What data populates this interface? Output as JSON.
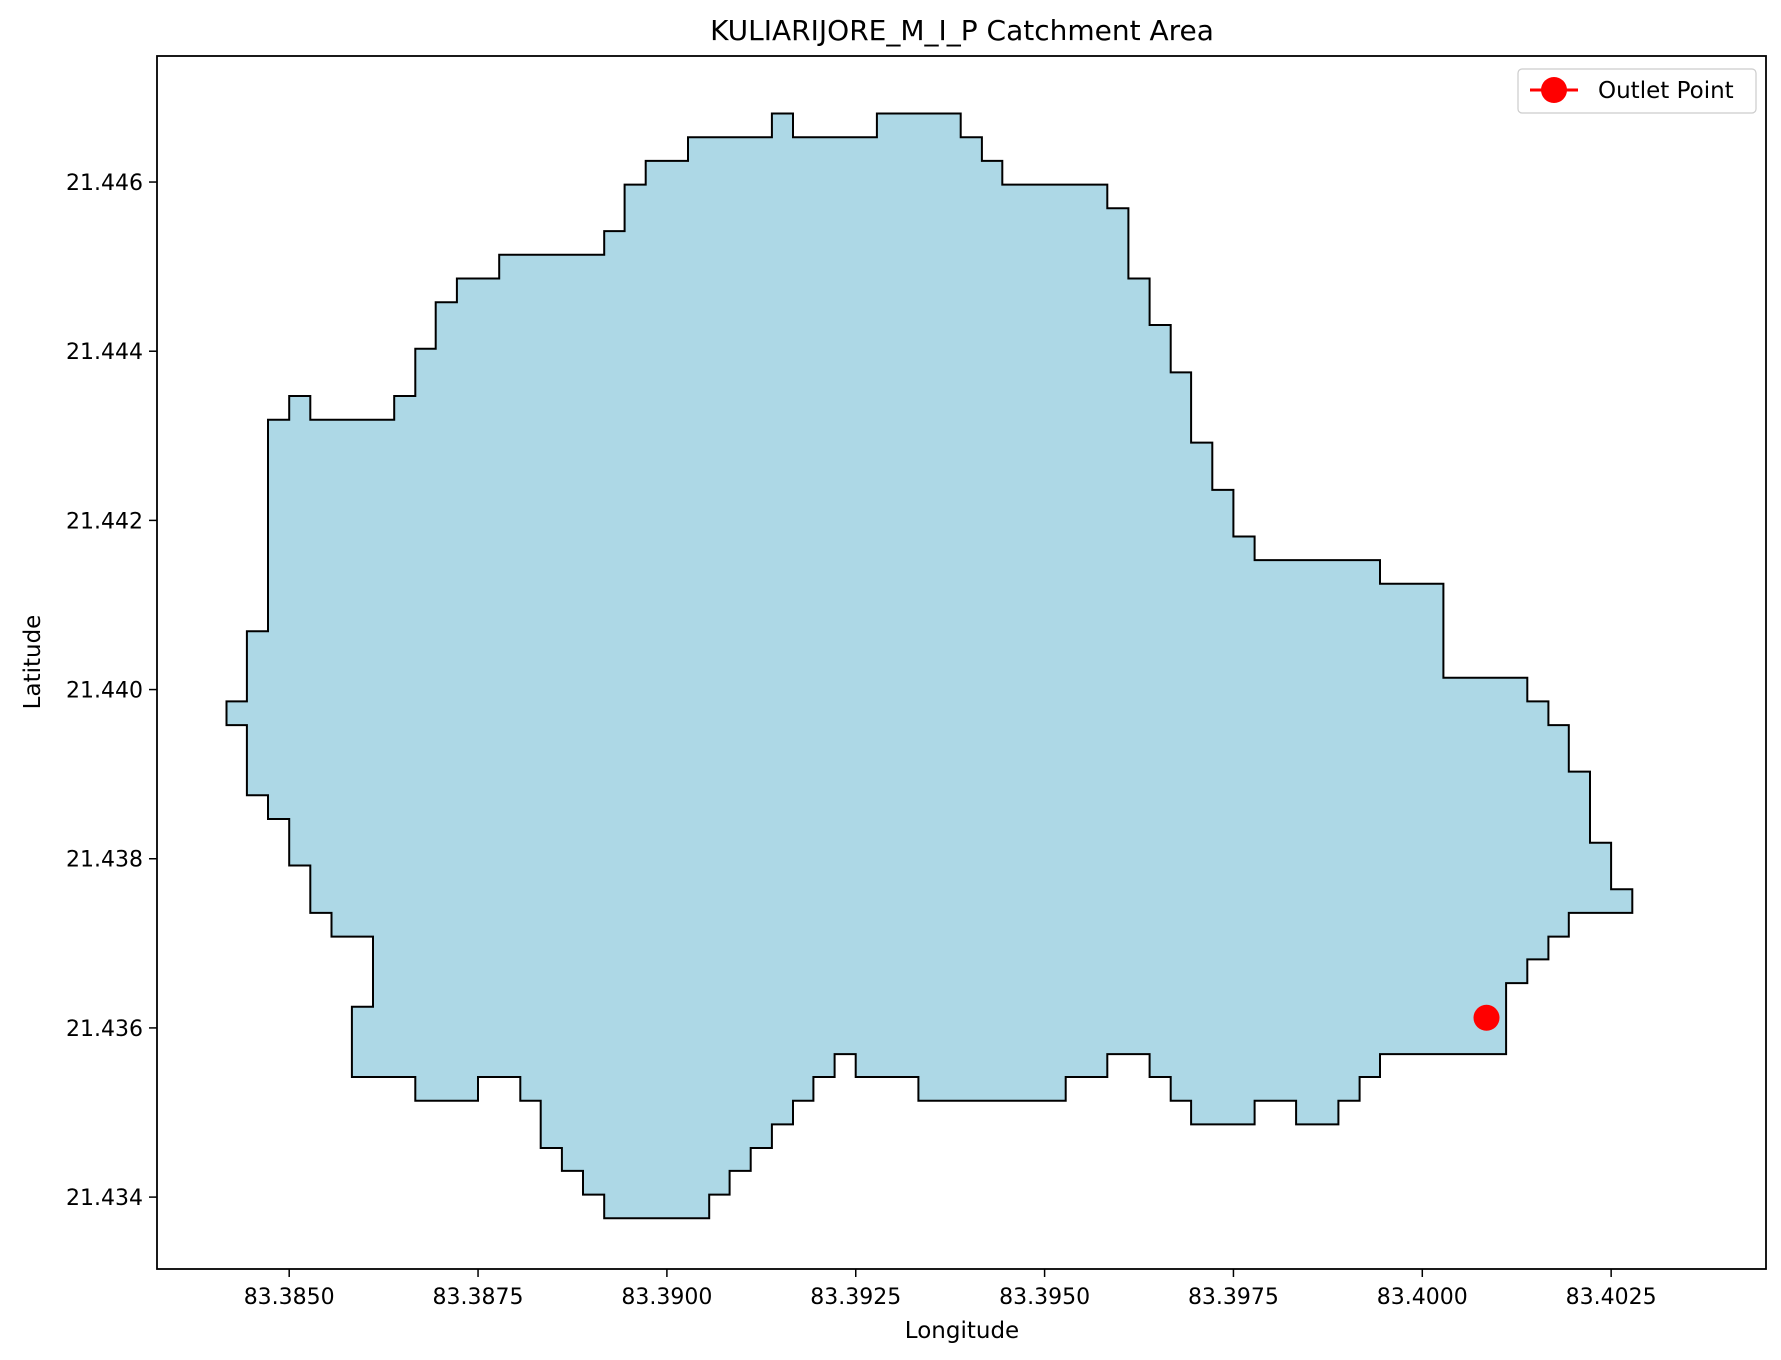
{
  "chart_data": {
    "type": "map",
    "title": "KULIARIJORE_M_I_P Catchment Area",
    "xlabel": "Longitude",
    "ylabel": "Latitude",
    "xlim": [
      83.38325,
      83.40455
    ],
    "ylim": [
      21.43315,
      21.44749
    ],
    "xticks": [
      83.385,
      83.3875,
      83.39,
      83.3925,
      83.395,
      83.3975,
      83.4,
      83.4025
    ],
    "xtick_labels": [
      "83.3850",
      "83.3875",
      "83.3900",
      "83.3925",
      "83.3950",
      "83.3975",
      "83.4000",
      "83.4025"
    ],
    "yticks": [
      21.434,
      21.436,
      21.438,
      21.44,
      21.442,
      21.444,
      21.446
    ],
    "ytick_labels": [
      "21.434",
      "21.436",
      "21.438",
      "21.440",
      "21.442",
      "21.444",
      "21.446"
    ],
    "grid": false,
    "legend": {
      "position": "top-right",
      "entries": [
        "Outlet Point"
      ]
    },
    "catchment": {
      "fill_color": "#add8e6",
      "edge_color": "#000000",
      "boundary_lon_lat": [
        [
          83.38417,
          21.43986
        ],
        [
          83.38444,
          21.43986
        ],
        [
          83.38444,
          21.44069
        ],
        [
          83.38472,
          21.44069
        ],
        [
          83.38472,
          21.44319
        ],
        [
          83.385,
          21.44319
        ],
        [
          83.385,
          21.44347
        ],
        [
          83.38528,
          21.44347
        ],
        [
          83.38528,
          21.44319
        ],
        [
          83.38639,
          21.44319
        ],
        [
          83.38639,
          21.44347
        ],
        [
          83.38667,
          21.44347
        ],
        [
          83.38667,
          21.44403
        ],
        [
          83.38694,
          21.44403
        ],
        [
          83.38694,
          21.44458
        ],
        [
          83.38722,
          21.44458
        ],
        [
          83.38722,
          21.44486
        ],
        [
          83.38778,
          21.44486
        ],
        [
          83.38778,
          21.44514
        ],
        [
          83.38917,
          21.44514
        ],
        [
          83.38917,
          21.44542
        ],
        [
          83.38944,
          21.44542
        ],
        [
          83.38944,
          21.44597
        ],
        [
          83.38972,
          21.44597
        ],
        [
          83.38972,
          21.44625
        ],
        [
          83.39028,
          21.44625
        ],
        [
          83.39028,
          21.44653
        ],
        [
          83.39139,
          21.44653
        ],
        [
          83.39139,
          21.44681
        ],
        [
          83.39167,
          21.44681
        ],
        [
          83.39167,
          21.44653
        ],
        [
          83.39278,
          21.44653
        ],
        [
          83.39278,
          21.44681
        ],
        [
          83.39389,
          21.44681
        ],
        [
          83.39389,
          21.44653
        ],
        [
          83.39417,
          21.44653
        ],
        [
          83.39417,
          21.44625
        ],
        [
          83.39444,
          21.44625
        ],
        [
          83.39444,
          21.44597
        ],
        [
          83.39583,
          21.44597
        ],
        [
          83.39583,
          21.44569
        ],
        [
          83.39611,
          21.44569
        ],
        [
          83.39611,
          21.44486
        ],
        [
          83.39639,
          21.44486
        ],
        [
          83.39639,
          21.44431
        ],
        [
          83.39667,
          21.44431
        ],
        [
          83.39667,
          21.44375
        ],
        [
          83.39694,
          21.44375
        ],
        [
          83.39694,
          21.44292
        ],
        [
          83.39722,
          21.44292
        ],
        [
          83.39722,
          21.44236
        ],
        [
          83.3975,
          21.44236
        ],
        [
          83.3975,
          21.44181
        ],
        [
          83.39778,
          21.44181
        ],
        [
          83.39778,
          21.44153
        ],
        [
          83.39944,
          21.44153
        ],
        [
          83.39944,
          21.44125
        ],
        [
          83.40028,
          21.44125
        ],
        [
          83.40028,
          21.44014
        ],
        [
          83.40139,
          21.44014
        ],
        [
          83.40139,
          21.43986
        ],
        [
          83.40167,
          21.43986
        ],
        [
          83.40167,
          21.43958
        ],
        [
          83.40194,
          21.43958
        ],
        [
          83.40194,
          21.43903
        ],
        [
          83.40222,
          21.43903
        ],
        [
          83.40222,
          21.43819
        ],
        [
          83.4025,
          21.43819
        ],
        [
          83.4025,
          21.43764
        ],
        [
          83.40278,
          21.43764
        ],
        [
          83.40278,
          21.43736
        ],
        [
          83.40194,
          21.43736
        ],
        [
          83.40194,
          21.43708
        ],
        [
          83.40167,
          21.43708
        ],
        [
          83.40167,
          21.43681
        ],
        [
          83.40139,
          21.43681
        ],
        [
          83.40139,
          21.43653
        ],
        [
          83.40111,
          21.43653
        ],
        [
          83.40111,
          21.43569
        ],
        [
          83.39944,
          21.43569
        ],
        [
          83.39944,
          21.43542
        ],
        [
          83.39917,
          21.43542
        ],
        [
          83.39917,
          21.43514
        ],
        [
          83.39889,
          21.43514
        ],
        [
          83.39889,
          21.43486
        ],
        [
          83.39833,
          21.43486
        ],
        [
          83.39833,
          21.43514
        ],
        [
          83.39778,
          21.43514
        ],
        [
          83.39778,
          21.43486
        ],
        [
          83.39694,
          21.43486
        ],
        [
          83.39694,
          21.43514
        ],
        [
          83.39667,
          21.43514
        ],
        [
          83.39667,
          21.43542
        ],
        [
          83.39639,
          21.43542
        ],
        [
          83.39639,
          21.43569
        ],
        [
          83.39583,
          21.43569
        ],
        [
          83.39583,
          21.43542
        ],
        [
          83.39528,
          21.43542
        ],
        [
          83.39528,
          21.43514
        ],
        [
          83.39333,
          21.43514
        ],
        [
          83.39333,
          21.43542
        ],
        [
          83.3925,
          21.43542
        ],
        [
          83.3925,
          21.43569
        ],
        [
          83.39222,
          21.43569
        ],
        [
          83.39222,
          21.43542
        ],
        [
          83.39194,
          21.43542
        ],
        [
          83.39194,
          21.43514
        ],
        [
          83.39167,
          21.43514
        ],
        [
          83.39167,
          21.43486
        ],
        [
          83.39139,
          21.43486
        ],
        [
          83.39139,
          21.43458
        ],
        [
          83.39111,
          21.43458
        ],
        [
          83.39111,
          21.43431
        ],
        [
          83.39083,
          21.43431
        ],
        [
          83.39083,
          21.43403
        ],
        [
          83.39056,
          21.43403
        ],
        [
          83.39056,
          21.43375
        ],
        [
          83.38917,
          21.43375
        ],
        [
          83.38917,
          21.43403
        ],
        [
          83.38889,
          21.43403
        ],
        [
          83.38889,
          21.43431
        ],
        [
          83.38861,
          21.43431
        ],
        [
          83.38861,
          21.43458
        ],
        [
          83.38833,
          21.43458
        ],
        [
          83.38833,
          21.43514
        ],
        [
          83.38806,
          21.43514
        ],
        [
          83.38806,
          21.43542
        ],
        [
          83.3875,
          21.43542
        ],
        [
          83.3875,
          21.43514
        ],
        [
          83.38667,
          21.43514
        ],
        [
          83.38667,
          21.43542
        ],
        [
          83.38583,
          21.43542
        ],
        [
          83.38583,
          21.43625
        ],
        [
          83.38611,
          21.43625
        ],
        [
          83.38611,
          21.43708
        ],
        [
          83.38556,
          21.43708
        ],
        [
          83.38556,
          21.43736
        ],
        [
          83.38528,
          21.43736
        ],
        [
          83.38528,
          21.43792
        ],
        [
          83.385,
          21.43792
        ],
        [
          83.385,
          21.43847
        ],
        [
          83.38472,
          21.43847
        ],
        [
          83.38472,
          21.43875
        ],
        [
          83.38444,
          21.43875
        ],
        [
          83.38444,
          21.43958
        ],
        [
          83.38417,
          21.43958
        ]
      ]
    },
    "outlet": {
      "lon": 83.40085,
      "lat": 21.43612,
      "color": "#ff0000",
      "label": "Outlet Point"
    }
  }
}
